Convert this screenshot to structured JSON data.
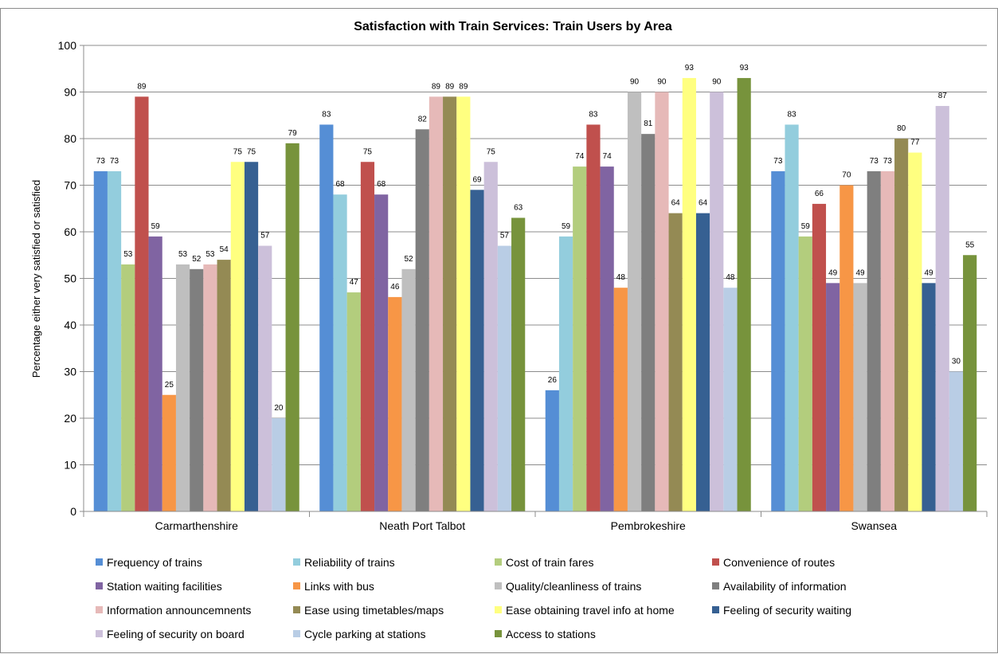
{
  "chart_data": {
    "type": "bar",
    "title": "Satisfaction with Train Services: Train Users by Area",
    "xlabel": "",
    "ylabel": "Percentage either very satisfied or satisfied",
    "ylim": [
      0,
      100
    ],
    "yticks": [
      0,
      10,
      20,
      30,
      40,
      50,
      60,
      70,
      80,
      90,
      100
    ],
    "grid": true,
    "legend_position": "bottom",
    "categories": [
      "Carmarthenshire",
      "Neath Port Talbot",
      "Pembrokeshire",
      "Swansea"
    ],
    "series": [
      {
        "name": "Frequency of trains",
        "color": "#558ED5",
        "values": [
          73,
          83,
          26,
          73
        ]
      },
      {
        "name": "Reliability of trains",
        "color": "#93CDDD",
        "values": [
          73,
          68,
          59,
          83
        ]
      },
      {
        "name": "Cost of train fares",
        "color": "#B3CD7D",
        "values": [
          53,
          47,
          74,
          59
        ]
      },
      {
        "name": "Convenience of routes",
        "color": "#C0504D",
        "values": [
          89,
          75,
          83,
          66
        ]
      },
      {
        "name": "Station waiting facilities",
        "color": "#8064A2",
        "values": [
          59,
          68,
          74,
          49
        ]
      },
      {
        "name": "Links with bus",
        "color": "#F79646",
        "values": [
          25,
          46,
          48,
          70
        ]
      },
      {
        "name": "Quality/cleanliness of trains",
        "color": "#BFBFBF",
        "values": [
          53,
          52,
          90,
          49
        ]
      },
      {
        "name": "Availability of information",
        "color": "#7F7F7F",
        "values": [
          52,
          82,
          81,
          73
        ]
      },
      {
        "name": "Information announcemnents",
        "color": "#E6B9B8",
        "values": [
          53,
          89,
          90,
          73
        ]
      },
      {
        "name": "Ease using timetables/maps",
        "color": "#948A54",
        "values": [
          54,
          89,
          64,
          80
        ]
      },
      {
        "name": "Ease obtaining travel info at home",
        "color": "#FFFF80",
        "values": [
          75,
          89,
          93,
          77
        ]
      },
      {
        "name": "Feeling of security waiting",
        "color": "#366092",
        "values": [
          75,
          69,
          64,
          49
        ]
      },
      {
        "name": "Feeling of security on board",
        "color": "#CCC0DA",
        "values": [
          57,
          75,
          90,
          87
        ]
      },
      {
        "name": "Cycle parking at stations",
        "color": "#B9CDE5",
        "values": [
          20,
          57,
          48,
          30
        ]
      },
      {
        "name": "Access to stations",
        "color": "#77933C",
        "values": [
          79,
          63,
          93,
          55
        ]
      }
    ]
  }
}
